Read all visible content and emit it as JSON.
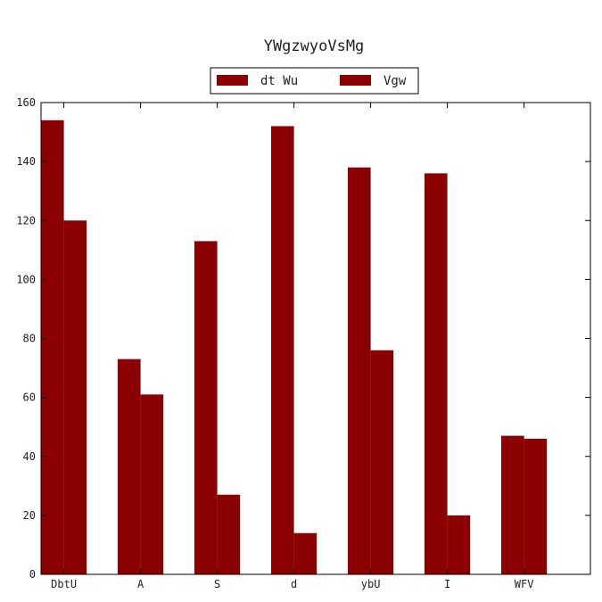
{
  "chart_data": {
    "type": "bar",
    "title": "YWgzwyoVsMg",
    "xlabel": "",
    "ylabel": "",
    "categories": [
      "DbtU",
      "A",
      "S",
      "d",
      "ybU",
      "I",
      "WFV"
    ],
    "series": [
      {
        "name": "dt Wu",
        "values": [
          154,
          73,
          113,
          152,
          138,
          136,
          47
        ],
        "color": "#8b0000"
      },
      {
        "name": "Vgw",
        "values": [
          120,
          61,
          27,
          14,
          76,
          20,
          46
        ],
        "color": "#8b0000"
      }
    ],
    "ylim": [
      0,
      160
    ],
    "yticks": [
      0,
      20,
      40,
      60,
      80,
      100,
      120,
      140,
      160
    ],
    "grid": false,
    "legend_position": "top-center"
  }
}
